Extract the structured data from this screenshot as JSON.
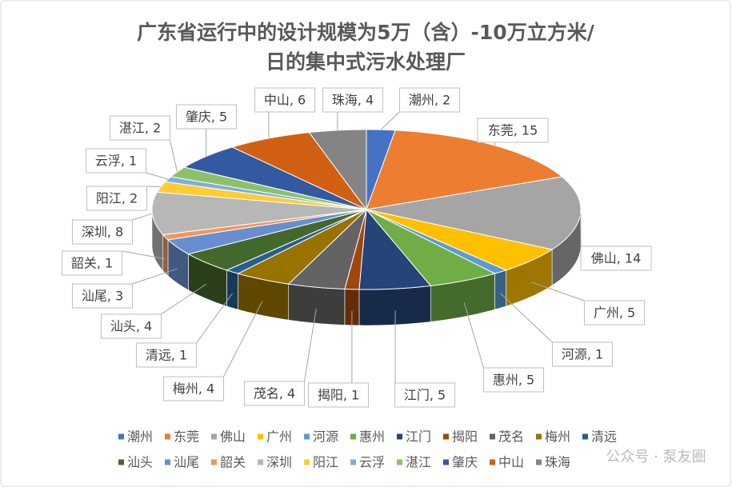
{
  "chart_data": {
    "type": "pie3d",
    "title": [
      "广东省运行中的设计规模为5万（含）-10万立方米/",
      "日的集中式污水处理厂"
    ],
    "categories": [
      "潮州",
      "东莞",
      "佛山",
      "广州",
      "河源",
      "惠州",
      "江门",
      "揭阳",
      "茂名",
      "梅州",
      "清远",
      "汕头",
      "汕尾",
      "韶关",
      "深圳",
      "阳江",
      "云浮",
      "湛江",
      "肇庆",
      "中山",
      "珠海"
    ],
    "values": [
      2,
      15,
      14,
      5,
      1,
      5,
      5,
      1,
      4,
      4,
      1,
      4,
      3,
      1,
      8,
      2,
      1,
      2,
      5,
      6,
      4
    ],
    "value_labels": [
      "潮州, 2",
      "东莞, 15",
      "佛山, 14",
      "广州, 5",
      "河源, 1",
      "惠州, 5",
      "江门, 5",
      "揭阳, 1",
      "茂名, 4",
      "梅州, 4",
      "清远, 1",
      "汕头, 4",
      "汕尾, 3",
      "韶关, 1",
      "深圳, 8",
      "阳江, 2",
      "云浮, 1",
      "湛江, 2",
      "肇庆, 5",
      "中山, 6",
      "珠海, 4"
    ],
    "colors": [
      "#4472c4",
      "#ed7d31",
      "#a5a5a5",
      "#ffc000",
      "#5b9bd5",
      "#70ad47",
      "#264478",
      "#9e480e",
      "#636363",
      "#997300",
      "#255e91",
      "#43682b",
      "#698ed0",
      "#f1975a",
      "#b7b7b7",
      "#ffcd33",
      "#7cafdd",
      "#8cc168",
      "#335aa1",
      "#d26012",
      "#848484"
    ],
    "legend": "bottom",
    "watermark": "公众号 · 泵友圈"
  }
}
